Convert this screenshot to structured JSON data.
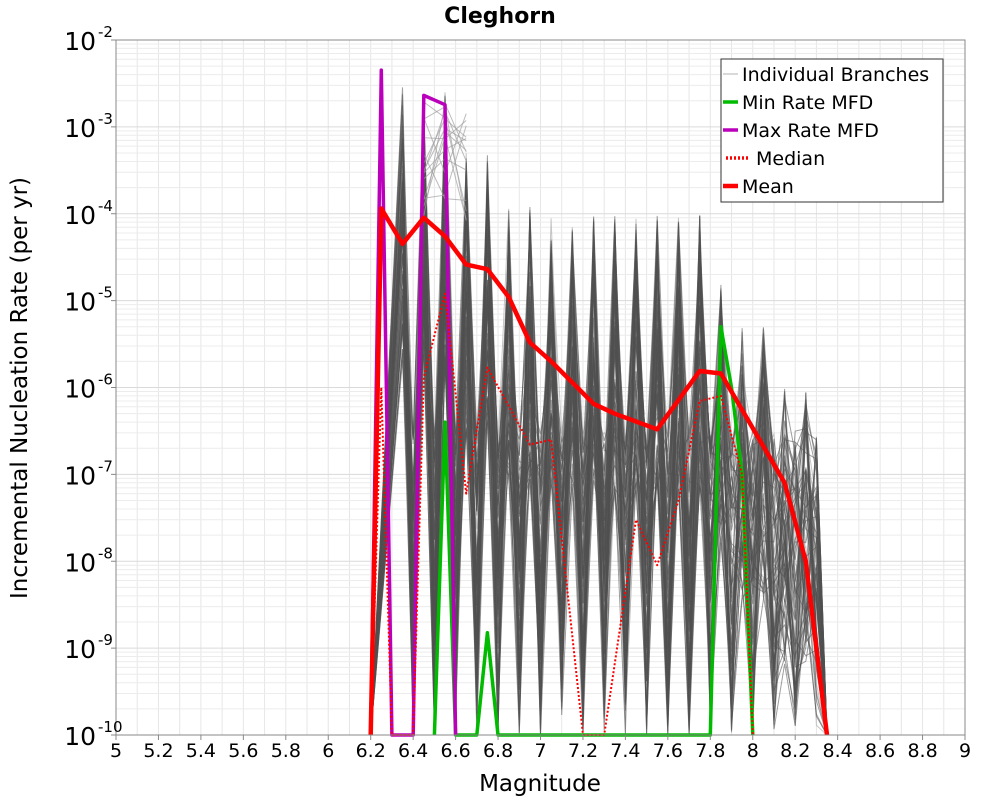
{
  "chart_data": {
    "type": "line",
    "title": "Cleghorn",
    "xlabel": "Magnitude",
    "ylabel": "Incremental Nucleation Rate (per yr)",
    "xlim": [
      5,
      9
    ],
    "ylim": [
      1e-10,
      0.01
    ],
    "yscale": "log",
    "grid": true,
    "legend_position": "top-right",
    "x_ticks": [
      "5",
      "5.2",
      "5.4",
      "5.6",
      "5.8",
      "6",
      "6.2",
      "6.4",
      "6.6",
      "6.8",
      "7",
      "7.2",
      "7.4",
      "7.6",
      "7.8",
      "8",
      "8.2",
      "8.4",
      "8.6",
      "8.8",
      "9"
    ],
    "y_ticks": [
      {
        "base": "10",
        "exp": "-10",
        "value": 1e-10
      },
      {
        "base": "10",
        "exp": "-9",
        "value": 1e-09
      },
      {
        "base": "10",
        "exp": "-8",
        "value": 1e-08
      },
      {
        "base": "10",
        "exp": "-7",
        "value": 1e-07
      },
      {
        "base": "10",
        "exp": "-6",
        "value": 1e-06
      },
      {
        "base": "10",
        "exp": "-5",
        "value": 1e-05
      },
      {
        "base": "10",
        "exp": "-4",
        "value": 0.0001
      },
      {
        "base": "10",
        "exp": "-3",
        "value": 0.001
      },
      {
        "base": "10",
        "exp": "-2",
        "value": 0.01
      }
    ],
    "series": [
      {
        "name": "Min Rate MFD",
        "color": "#00bb00",
        "style": "solid",
        "points": [
          [
            6.5,
            1e-10
          ],
          [
            6.55,
            4e-07
          ],
          [
            6.6,
            1e-10
          ],
          [
            6.7,
            1e-10
          ],
          [
            6.75,
            1.5e-09
          ],
          [
            6.8,
            1e-10
          ],
          [
            7.8,
            1e-10
          ],
          [
            7.85,
            5e-06
          ],
          [
            7.9,
            1e-06
          ],
          [
            7.95,
            1e-07
          ],
          [
            8.0,
            1e-10
          ]
        ]
      },
      {
        "name": "Max Rate MFD",
        "color": "#bb00bb",
        "style": "solid",
        "points": [
          [
            6.2,
            1e-10
          ],
          [
            6.25,
            0.0045
          ],
          [
            6.3,
            1e-10
          ],
          [
            6.4,
            1e-10
          ],
          [
            6.45,
            0.0023
          ],
          [
            6.55,
            0.0018
          ],
          [
            6.6,
            1e-10
          ]
        ]
      },
      {
        "name": "Median",
        "color": "#ff0000",
        "style": "dotted",
        "points": [
          [
            6.2,
            1e-10
          ],
          [
            6.25,
            1e-06
          ],
          [
            6.3,
            1e-10
          ],
          [
            6.4,
            1e-10
          ],
          [
            6.45,
            1.3e-06
          ],
          [
            6.55,
            1.2e-05
          ],
          [
            6.65,
            6e-08
          ],
          [
            6.75,
            1.7e-06
          ],
          [
            6.95,
            2.2e-07
          ],
          [
            7.05,
            2.5e-07
          ],
          [
            7.2,
            1e-10
          ],
          [
            7.3,
            1e-10
          ],
          [
            7.45,
            3e-08
          ],
          [
            7.55,
            9e-09
          ],
          [
            7.65,
            5e-08
          ],
          [
            7.75,
            7e-07
          ],
          [
            7.85,
            8e-07
          ],
          [
            7.95,
            1e-07
          ],
          [
            8.0,
            1e-10
          ]
        ]
      },
      {
        "name": "Mean",
        "color": "#ff0000",
        "style": "thick",
        "points": [
          [
            6.2,
            1e-10
          ],
          [
            6.25,
            0.000115
          ],
          [
            6.35,
            4.5e-05
          ],
          [
            6.45,
            9e-05
          ],
          [
            6.55,
            5.5e-05
          ],
          [
            6.65,
            2.6e-05
          ],
          [
            6.75,
            2.3e-05
          ],
          [
            6.85,
            1.1e-05
          ],
          [
            6.95,
            3.3e-06
          ],
          [
            7.05,
            2e-06
          ],
          [
            7.25,
            6.5e-07
          ],
          [
            7.35,
            5e-07
          ],
          [
            7.55,
            3.3e-07
          ],
          [
            7.75,
            1.55e-06
          ],
          [
            7.85,
            1.45e-06
          ],
          [
            8.05,
            2.1e-07
          ],
          [
            8.15,
            8e-08
          ],
          [
            8.25,
            1e-08
          ],
          [
            8.35,
            1e-10
          ]
        ]
      }
    ],
    "legend_entries": [
      {
        "label": "Individual Branches",
        "color": "#cccccc",
        "style": "thin"
      },
      {
        "label": "Min Rate MFD",
        "color": "#00bb00",
        "style": "solid"
      },
      {
        "label": "Max Rate MFD",
        "color": "#bb00bb",
        "style": "solid"
      },
      {
        "label": "Median",
        "color": "#ff0000",
        "style": "dotted"
      },
      {
        "label": "Mean",
        "color": "#ff0000",
        "style": "thick"
      }
    ]
  }
}
